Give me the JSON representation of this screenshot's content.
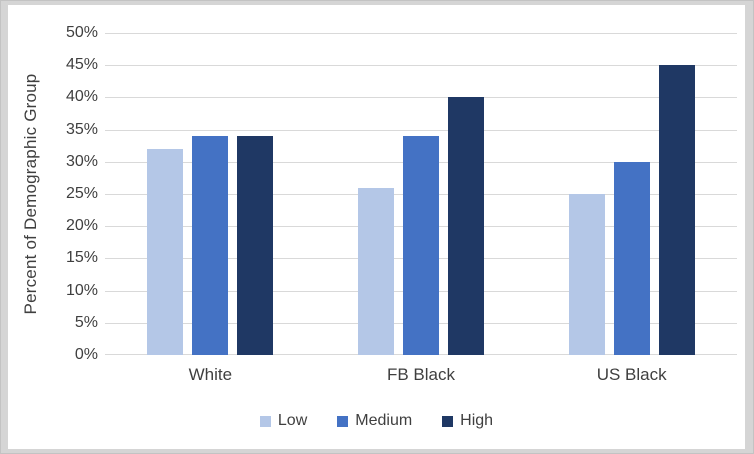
{
  "chart_data": {
    "type": "bar",
    "title": "",
    "categories": [
      "White",
      "FB Black",
      "US Black"
    ],
    "series": [
      {
        "name": "Low",
        "color": "#b4c7e7",
        "values": [
          32,
          26,
          25
        ]
      },
      {
        "name": "Medium",
        "color": "#4472c4",
        "values": [
          34,
          34,
          30
        ]
      },
      {
        "name": "High",
        "color": "#1f3864",
        "values": [
          34,
          40,
          45
        ]
      }
    ],
    "xlabel": "",
    "ylabel": "Percent of Demographic Group",
    "ylim": [
      0,
      50
    ],
    "ytick_step": 5,
    "ytick_labels": [
      "0%",
      "5%",
      "10%",
      "15%",
      "20%",
      "25%",
      "30%",
      "35%",
      "40%",
      "45%",
      "50%"
    ],
    "grid": true,
    "legend_position": "bottom",
    "legend_labels": [
      "Low",
      "Medium",
      "High"
    ]
  },
  "colors": {
    "frame": "#d5d5d5",
    "background": "#ffffff",
    "gridline": "#d9d9d9",
    "text": "#3f3f3f"
  }
}
